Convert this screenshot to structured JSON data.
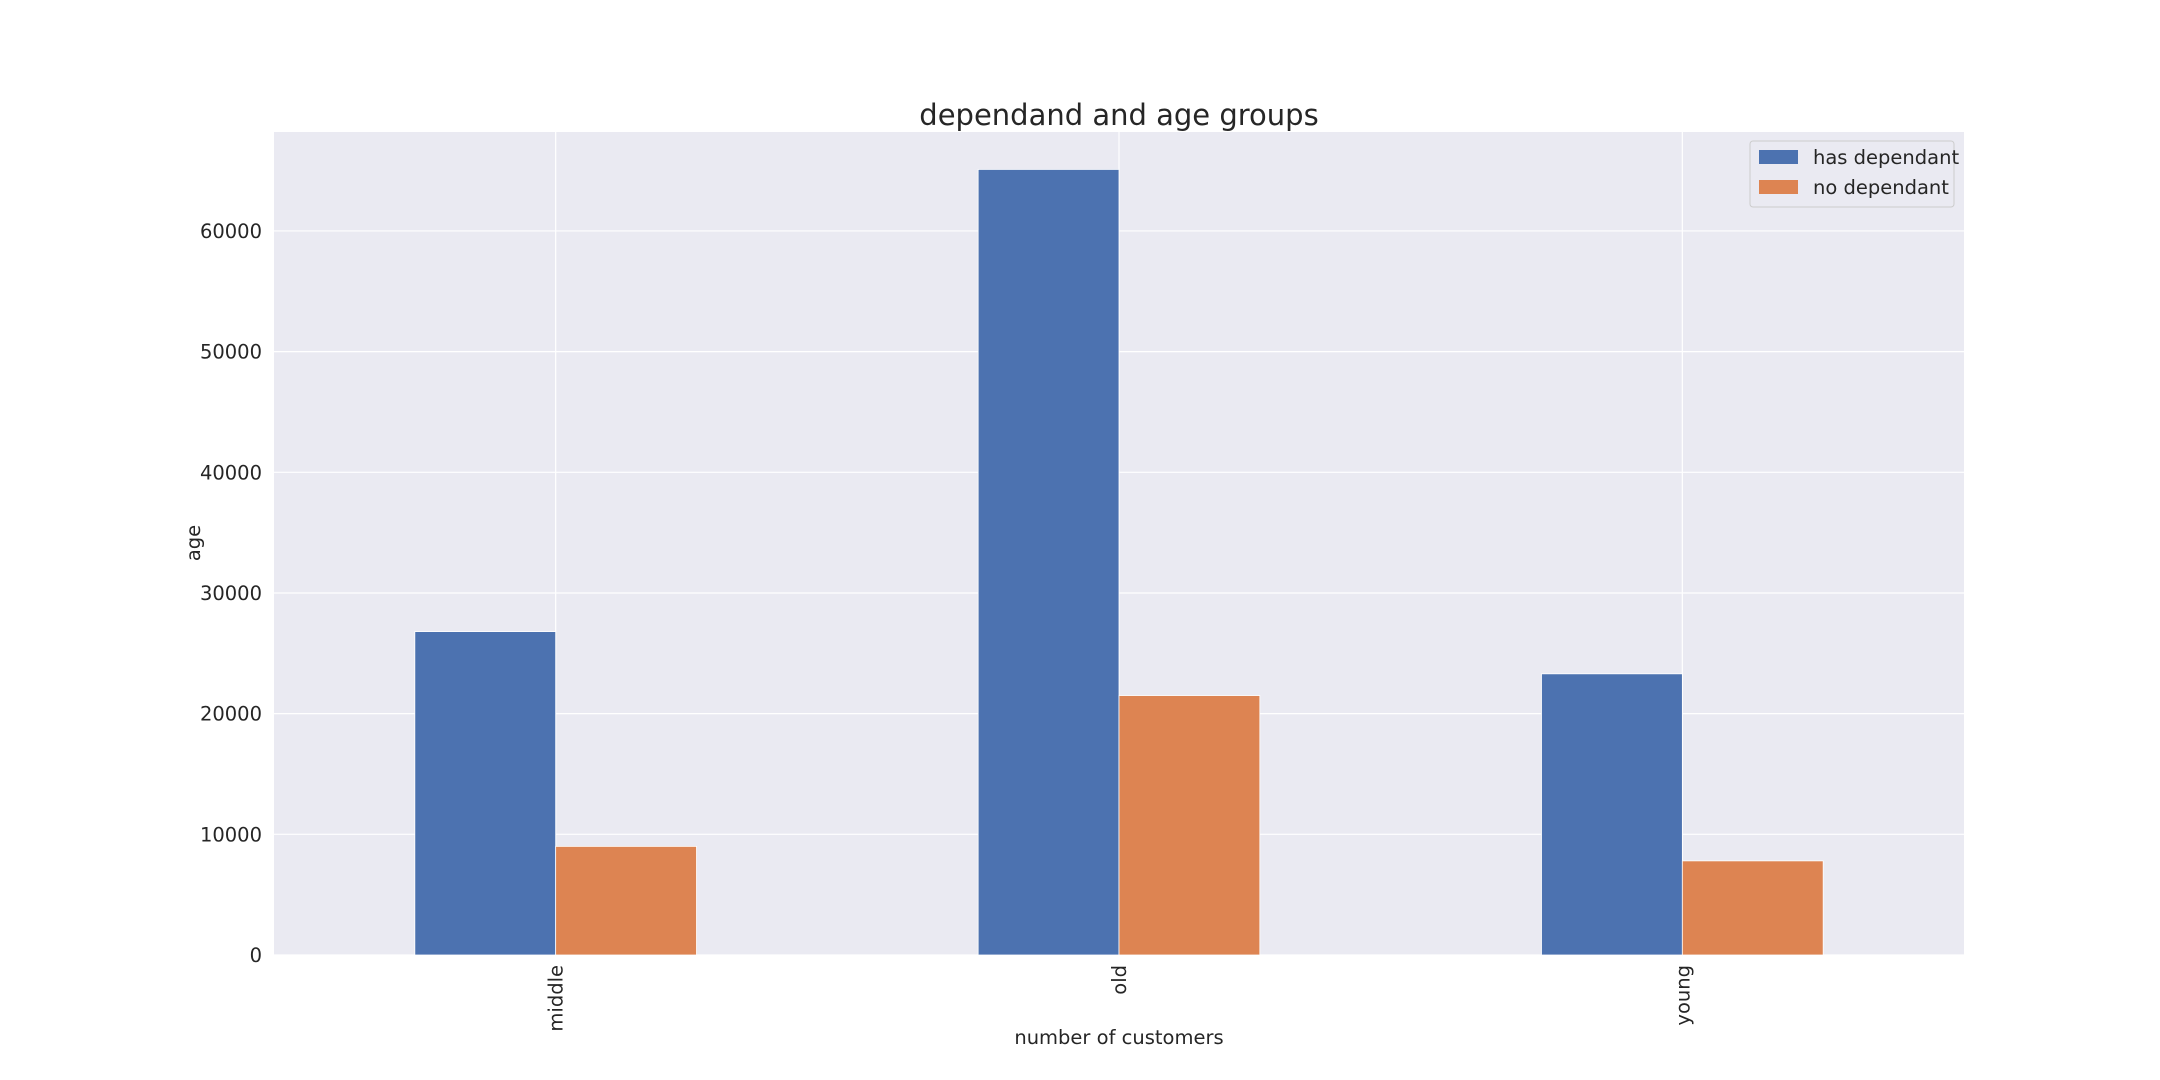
{
  "chart_data": {
    "type": "bar",
    "title": "dependand and age groups",
    "xlabel": "number of customers",
    "ylabel": "age",
    "categories": [
      "middle",
      "old",
      "young"
    ],
    "series": [
      {
        "name": "has dependant",
        "values": [
          26800,
          65100,
          23300
        ],
        "color": "#4c72b0"
      },
      {
        "name": "no dependant",
        "values": [
          9000,
          21500,
          7800
        ],
        "color": "#dd8452"
      }
    ],
    "ylim": [
      0,
      68200
    ],
    "yticks": [
      0,
      10000,
      20000,
      30000,
      40000,
      50000,
      60000
    ],
    "grid": true,
    "legend_position": "top-right",
    "background": "#eaeaf2",
    "gridline_color": "#ffffff"
  }
}
